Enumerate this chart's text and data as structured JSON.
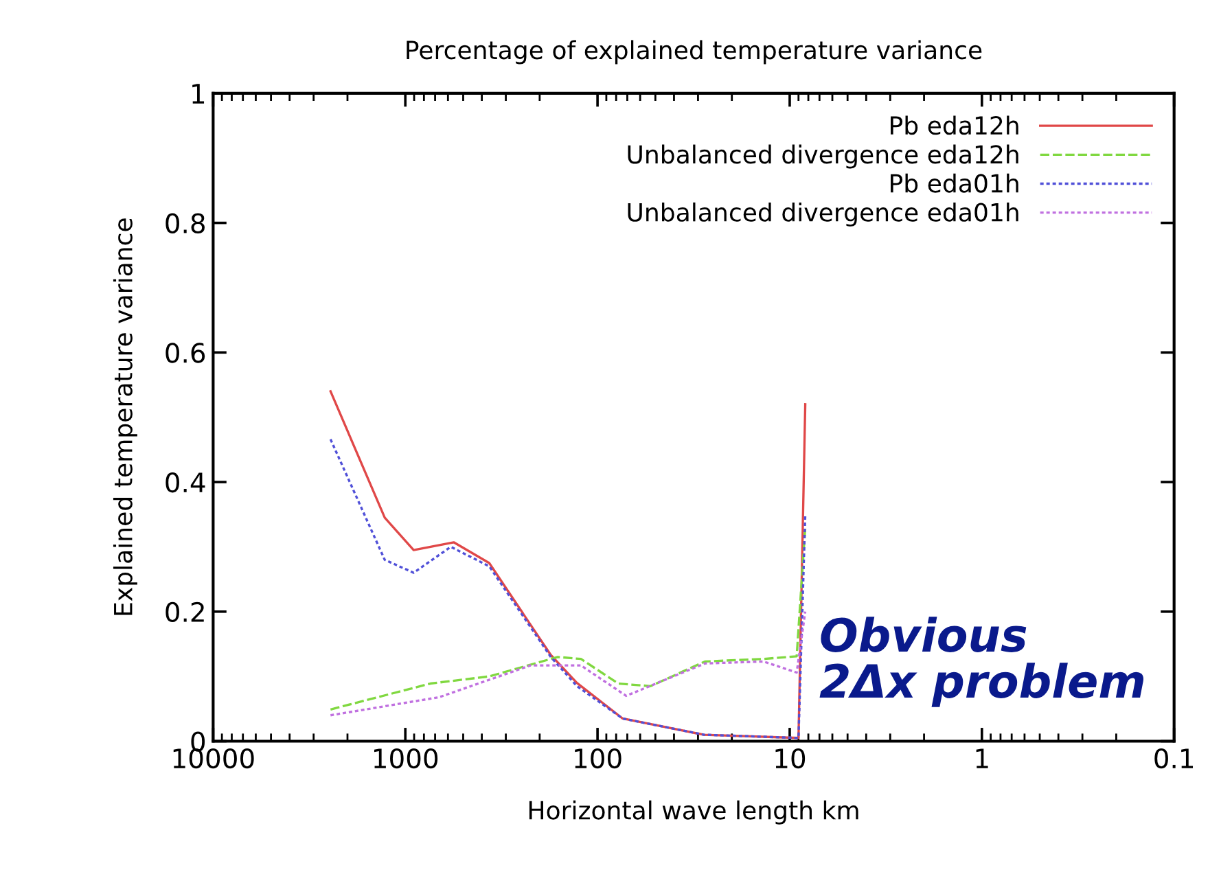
{
  "chart_data": {
    "type": "line",
    "title": "Percentage of explained temperature variance",
    "xlabel": "Horizontal wave length km",
    "ylabel": "Explained temperature variance",
    "log": "x",
    "xlim": [
      10000,
      0.1
    ],
    "xticks": [
      10000,
      1000,
      100,
      10,
      1,
      0.1
    ],
    "ylim": [
      0,
      1
    ],
    "yticks": [
      0,
      0.2,
      0.4,
      0.6,
      0.8,
      1
    ],
    "grid": false,
    "legend": "top right",
    "series": [
      {
        "name": "Pb eda12h",
        "color": "#e04848",
        "line_style": "solid",
        "x": [
          2450,
          1280,
          905,
          560,
          366,
          175,
          128,
          74,
          28,
          9,
          8.3
        ],
        "values": [
          0.54,
          0.345,
          0.295,
          0.307,
          0.275,
          0.133,
          0.09,
          0.035,
          0.01,
          0.005,
          0.52
        ]
      },
      {
        "name": "Unbalanced divergence eda12h",
        "color": "#80d840",
        "line_style": "dashed",
        "x": [
          2450,
          740,
          366,
          161,
          122,
          78,
          53,
          27.6,
          13.7,
          9.2,
          8.3
        ],
        "values": [
          0.049,
          0.089,
          0.1,
          0.13,
          0.127,
          0.089,
          0.085,
          0.123,
          0.127,
          0.131,
          0.33
        ]
      },
      {
        "name": "Pb eda01h",
        "color": "#5050d8",
        "line_style": "dotted",
        "x": [
          2450,
          1280,
          905,
          580,
          366,
          175,
          128,
          74,
          28,
          9,
          8.3
        ],
        "values": [
          0.466,
          0.28,
          0.26,
          0.3,
          0.27,
          0.13,
          0.085,
          0.035,
          0.01,
          0.005,
          0.35
        ]
      },
      {
        "name": "Unbalanced divergence eda01h",
        "color": "#c070e0",
        "line_style": "dotted",
        "x": [
          2450,
          665,
          223,
          151,
          122,
          71,
          27.6,
          13.7,
          9.2,
          8.3
        ],
        "values": [
          0.04,
          0.068,
          0.117,
          0.117,
          0.117,
          0.07,
          0.12,
          0.123,
          0.106,
          0.2
        ]
      }
    ],
    "annotations": [
      "Obvious\n2Δx problem"
    ]
  }
}
